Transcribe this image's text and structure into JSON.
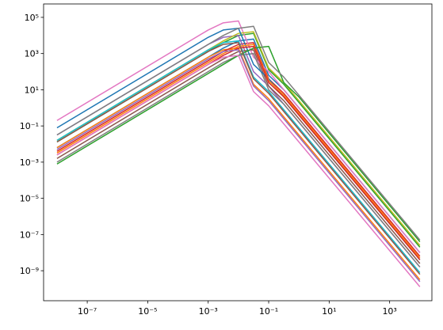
{
  "chart_data": {
    "type": "line",
    "xscale": "log",
    "yscale": "log",
    "xlim": [
      3.6e-09,
      25000
    ],
    "ylim": [
      2.2e-11,
      550000
    ],
    "xticks": [
      {
        "value": 1e-07,
        "label": "10⁻⁷"
      },
      {
        "value": 1e-05,
        "label": "10⁻⁵"
      },
      {
        "value": 0.001,
        "label": "10⁻³"
      },
      {
        "value": 0.1,
        "label": "10⁻¹"
      },
      {
        "value": 10,
        "label": "10¹"
      },
      {
        "value": 1000,
        "label": "10³"
      }
    ],
    "yticks": [
      {
        "value": 1e-09,
        "label": "10⁻⁹"
      },
      {
        "value": 1e-07,
        "label": "10⁻⁷"
      },
      {
        "value": 1e-05,
        "label": "10⁻⁵"
      },
      {
        "value": 0.001,
        "label": "10⁻³"
      },
      {
        "value": 0.1,
        "label": "10⁻¹"
      },
      {
        "value": 10,
        "label": "10¹"
      },
      {
        "value": 1000,
        "label": "10³"
      },
      {
        "value": 100000,
        "label": "10⁵"
      }
    ],
    "x": [
      1e-08,
      0.001,
      0.00316,
      0.01,
      0.0316,
      0.1,
      0.316,
      1,
      3.16,
      10,
      10000
    ],
    "series": [
      {
        "color": "#1f77b4",
        "values": [
          0.0063,
          630,
          2000,
          5000,
          6300,
          63,
          10,
          1,
          0.1,
          0.01,
          1e-08
        ]
      },
      {
        "color": "#ff7f0e",
        "values": [
          0.0063,
          630,
          1600,
          2000,
          20,
          3.2,
          0.32,
          0.032,
          0.0032,
          0.00032,
          3.2e-10
        ]
      },
      {
        "color": "#2ca02c",
        "values": [
          0.013,
          1300,
          4000,
          10000,
          13000,
          130,
          20,
          2,
          0.2,
          0.02,
          2e-08
        ]
      },
      {
        "color": "#d62728",
        "values": [
          0.004,
          400,
          1300,
          3200,
          4000,
          40,
          6.3,
          0.63,
          0.063,
          0.0063,
          6.3e-09
        ]
      },
      {
        "color": "#9467bd",
        "values": [
          0.032,
          3200,
          7900,
          10000,
          100,
          16,
          1.6,
          0.16,
          0.016,
          0.0016,
          1.6e-09
        ]
      },
      {
        "color": "#8c564b",
        "values": [
          0.0016,
          160,
          500,
          1300,
          1600,
          16,
          2.5,
          0.25,
          0.025,
          0.0025,
          2.5e-09
        ]
      },
      {
        "color": "#e377c2",
        "values": [
          0.2,
          20000,
          50000,
          63000,
          630,
          100,
          10,
          1,
          0.1,
          0.01,
          1e-08
        ]
      },
      {
        "color": "#7f7f7f",
        "values": [
          0.001,
          100,
          320,
          790,
          1000,
          10,
          1.6,
          0.16,
          0.016,
          0.0016,
          1.6e-09
        ]
      },
      {
        "color": "#bcbd22",
        "values": [
          0.016,
          1600,
          5000,
          13000,
          16000,
          160,
          25,
          2.5,
          0.25,
          0.025,
          2.5e-08
        ]
      },
      {
        "color": "#17becf",
        "values": [
          0.016,
          1600,
          4000,
          5000,
          50,
          7.9,
          0.79,
          0.079,
          0.0079,
          0.00079,
          7.9e-10
        ]
      },
      {
        "color": "#1f77b4",
        "values": [
          0.079,
          7900,
          20000,
          25000,
          250,
          40,
          4,
          0.4,
          0.04,
          0.004,
          4e-09
        ]
      },
      {
        "color": "#ff7f0e",
        "values": [
          0.0032,
          320,
          1000,
          2500,
          3200,
          32,
          5,
          0.5,
          0.05,
          0.005,
          5e-09
        ]
      },
      {
        "color": "#2ca02c",
        "values": [
          0.00079,
          79,
          250,
          790,
          2000,
          2500,
          25,
          4,
          0.4,
          0.04,
          4e-08
        ]
      },
      {
        "color": "#d62728",
        "values": [
          0.0025,
          250,
          790,
          2000,
          2500,
          25,
          4,
          0.4,
          0.04,
          0.004,
          4e-09
        ]
      },
      {
        "color": "#9467bd",
        "values": [
          0.005,
          500,
          1300,
          1600,
          16,
          2.5,
          0.25,
          0.025,
          0.0025,
          0.00025,
          2.5e-10
        ]
      },
      {
        "color": "#8c564b",
        "values": [
          0.013,
          1300,
          3200,
          4000,
          40,
          6.3,
          0.63,
          0.063,
          0.0063,
          0.00063,
          6.3e-10
        ]
      },
      {
        "color": "#e377c2",
        "values": [
          0.0025,
          250,
          630,
          790,
          7.9,
          1.3,
          0.13,
          0.013,
          0.0013,
          0.00013,
          1.3e-10
        ]
      },
      {
        "color": "#7f7f7f",
        "values": [
          0.032,
          3200,
          10000,
          25000,
          32000,
          320,
          50,
          5,
          0.5,
          0.05,
          5e-08
        ]
      }
    ]
  }
}
